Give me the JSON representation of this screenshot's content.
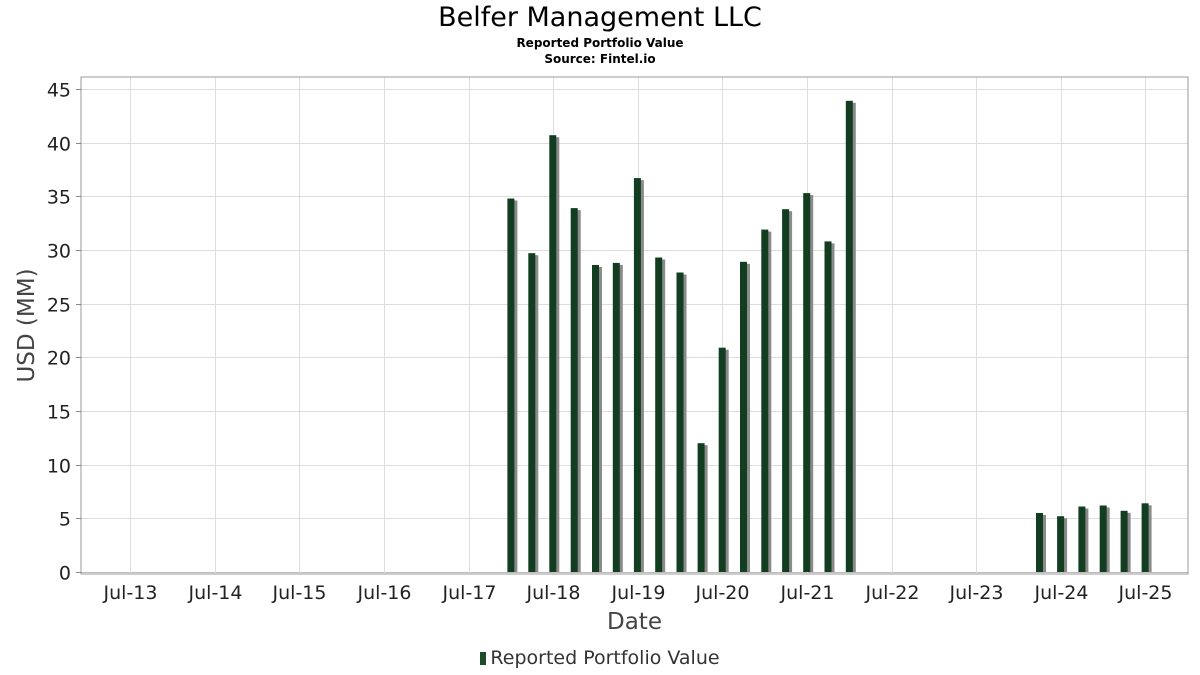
{
  "header": {
    "title": "Belfer Management LLC",
    "subtitle": "Reported Portfolio Value",
    "source": "Source: Fintel.io"
  },
  "legend": {
    "label": "Reported Portfolio Value"
  },
  "colors": {
    "bar": "#123d20",
    "bar_shadow": "#8a8a8a",
    "grid": "#dddddd",
    "frame": "#999999"
  },
  "chart_data": {
    "type": "bar",
    "xlabel": "Date",
    "ylabel": "USD (MM)",
    "ylim": [
      0,
      45
    ],
    "yticks": [
      0,
      5,
      10,
      15,
      20,
      25,
      30,
      35,
      40,
      45
    ],
    "xlim": [
      "2012-12-01",
      "2026-01-01"
    ],
    "xtick_labels": [
      "Jul-13",
      "Jul-14",
      "Jul-15",
      "Jul-16",
      "Jul-17",
      "Jul-18",
      "Jul-19",
      "Jul-20",
      "Jul-21",
      "Jul-22",
      "Jul-23",
      "Jul-24",
      "Jul-25"
    ],
    "xtick_dates": [
      "2013-07-01",
      "2014-07-01",
      "2015-07-01",
      "2016-07-01",
      "2017-07-01",
      "2018-07-01",
      "2019-07-01",
      "2020-07-01",
      "2021-07-01",
      "2022-07-01",
      "2023-07-01",
      "2024-07-01",
      "2025-07-01"
    ],
    "grid": true,
    "legend_position": "bottom",
    "series": [
      {
        "name": "Reported Portfolio Value",
        "points": [
          {
            "date": "2017-12-31",
            "value": 34.8
          },
          {
            "date": "2018-03-31",
            "value": 29.7
          },
          {
            "date": "2018-06-30",
            "value": 40.7
          },
          {
            "date": "2018-09-30",
            "value": 33.9
          },
          {
            "date": "2018-12-31",
            "value": 28.6
          },
          {
            "date": "2019-03-31",
            "value": 28.8
          },
          {
            "date": "2019-06-30",
            "value": 36.7
          },
          {
            "date": "2019-09-30",
            "value": 29.3
          },
          {
            "date": "2019-12-31",
            "value": 27.9
          },
          {
            "date": "2020-03-31",
            "value": 12.0
          },
          {
            "date": "2020-06-30",
            "value": 20.9
          },
          {
            "date": "2020-09-30",
            "value": 28.9
          },
          {
            "date": "2020-12-31",
            "value": 31.9
          },
          {
            "date": "2021-03-31",
            "value": 33.8
          },
          {
            "date": "2021-06-30",
            "value": 35.3
          },
          {
            "date": "2021-09-30",
            "value": 30.8
          },
          {
            "date": "2021-12-31",
            "value": 43.9
          },
          {
            "date": "2024-03-31",
            "value": 5.5
          },
          {
            "date": "2024-06-30",
            "value": 5.2
          },
          {
            "date": "2024-09-30",
            "value": 6.1
          },
          {
            "date": "2024-12-31",
            "value": 6.2
          },
          {
            "date": "2025-03-31",
            "value": 5.7
          },
          {
            "date": "2025-06-30",
            "value": 6.4
          }
        ]
      }
    ]
  }
}
